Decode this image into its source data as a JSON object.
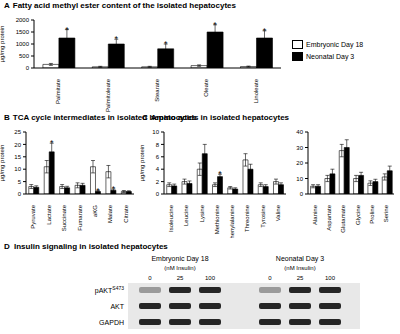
{
  "chart_data": [
    {
      "type": "bar",
      "title": "Fatty acid methyl ester content of the isolated hepatocytes",
      "y_label": "μg/mg protein",
      "legend": "right",
      "categories": [
        "Palmitate",
        "Palmitoleate",
        "Stearate",
        "Oleate",
        "Linoleate"
      ],
      "series": [
        {
          "name": "Embryonic Day 18",
          "color": "#ffffff",
          "values": [
            150,
            50,
            50,
            100,
            60
          ],
          "errors": [
            40,
            20,
            20,
            30,
            20
          ]
        },
        {
          "name": "Neonatal Day 3",
          "color": "#000000",
          "values": [
            1250,
            1000,
            800,
            1500,
            1250
          ],
          "errors": [
            350,
            200,
            200,
            300,
            300
          ]
        }
      ],
      "ylim": [
        0,
        2000
      ],
      "yticks": [
        0,
        500,
        1000,
        1500,
        2000
      ],
      "grid": false,
      "annotations": [
        {
          "text": "A"
        },
        {
          "text": "*",
          "category": "Palmitate",
          "series": "Neonatal Day 3"
        },
        {
          "text": "*",
          "category": "Palmitoleate",
          "series": "Neonatal Day 3"
        },
        {
          "text": "*",
          "category": "Stearate",
          "series": "Neonatal Day 3"
        },
        {
          "text": "*",
          "category": "Oleate",
          "series": "Neonatal Day 3"
        },
        {
          "text": "*",
          "category": "Linoleate",
          "series": "Neonatal Day 3"
        }
      ]
    },
    {
      "type": "bar",
      "title": "TCA cycle intermediates in isolated hepatocytes",
      "y_label": "μg/mg protein",
      "categories": [
        "Pyruvate",
        "Lactate",
        "Succinate",
        "Fumarate",
        "aKG",
        "Malate",
        "Citrate"
      ],
      "series": [
        {
          "name": "Embryonic Day 18",
          "color": "#ffffff",
          "values": [
            3,
            11,
            3,
            3.5,
            11,
            9,
            1
          ],
          "errors": [
            0.8,
            2.5,
            0.8,
            1,
            2.5,
            2.5,
            0.4
          ]
        },
        {
          "name": "Neonatal Day 3",
          "color": "#000000",
          "values": [
            2.7,
            17,
            2.5,
            3.5,
            1,
            1.5,
            1
          ],
          "errors": [
            0.6,
            3.5,
            0.6,
            0.8,
            0.3,
            0.5,
            0.3
          ]
        }
      ],
      "ylim": [
        0,
        25
      ],
      "yticks": [
        0,
        5,
        10,
        15,
        20,
        25
      ],
      "grid": false,
      "annotations": [
        {
          "text": "B"
        },
        {
          "text": "*",
          "category": "Lactate",
          "series": "Neonatal Day 3"
        },
        {
          "text": "*",
          "category": "aKG",
          "series": "Neonatal Day 3"
        },
        {
          "text": "*",
          "category": "Malate",
          "series": "Neonatal Day 3"
        }
      ]
    },
    {
      "type": "bar",
      "title": "Amino acids in isolated hepatocytes",
      "y_label": "μg/mg protein",
      "categories": [
        "Isoleucine",
        "Leucine",
        "Lysine",
        "Methionine",
        "Phenylalanine",
        "Threonine",
        "Tyrosine",
        "Valine"
      ],
      "series": [
        {
          "name": "Embryonic Day 18",
          "color": "#ffffff",
          "values": [
            1.5,
            2,
            4,
            1.5,
            1,
            5.5,
            1.5,
            2
          ],
          "errors": [
            0.3,
            0.4,
            1,
            0.3,
            0.2,
            1,
            0.3,
            0.4
          ]
        },
        {
          "name": "Neonatal Day 3",
          "color": "#000000",
          "values": [
            1.3,
            1.7,
            6.5,
            2.8,
            0.8,
            4,
            1.2,
            1.5
          ],
          "errors": [
            0.3,
            0.4,
            1.5,
            0.4,
            0.2,
            0.8,
            0.3,
            0.3
          ]
        }
      ],
      "ylim": [
        0,
        10
      ],
      "yticks": [
        0,
        2,
        4,
        6,
        8,
        10
      ],
      "grid": false,
      "annotations": [
        {
          "text": "C"
        },
        {
          "text": "*",
          "category": "Methionine",
          "series": "Neonatal Day 3"
        }
      ]
    },
    {
      "type": "bar",
      "categories": [
        "Alanine",
        "Aspartate",
        "Glutamate",
        "Glycine",
        "Proline",
        "Serine"
      ],
      "series": [
        {
          "name": "Embryonic Day 18",
          "color": "#ffffff",
          "values": [
            5,
            10,
            28,
            10,
            7,
            11
          ],
          "errors": [
            1,
            2,
            4,
            2,
            1.5,
            2
          ]
        },
        {
          "name": "Neonatal Day 3",
          "color": "#000000",
          "values": [
            5,
            13,
            30,
            12,
            8,
            15
          ],
          "errors": [
            1,
            3,
            5,
            2,
            1.5,
            3
          ]
        }
      ],
      "ylim": [
        0,
        40
      ],
      "yticks": [
        0,
        10,
        20,
        30,
        40
      ],
      "grid": false
    }
  ],
  "blot": {
    "panel": "D",
    "title": "Insulin signaling in isolated hepatocytes",
    "groups": [
      {
        "name": "Embryonic Day 18",
        "unit": "(nM Insulin)",
        "doses": [
          0,
          25,
          100
        ]
      },
      {
        "name": "Neonatal Day 3",
        "unit": "(nM Insulin)",
        "doses": [
          0,
          25,
          100
        ]
      }
    ],
    "rows": [
      {
        "label": "pAKT",
        "superscript": "S473"
      },
      {
        "label": "AKT"
      },
      {
        "label": "GAPDH"
      }
    ]
  }
}
